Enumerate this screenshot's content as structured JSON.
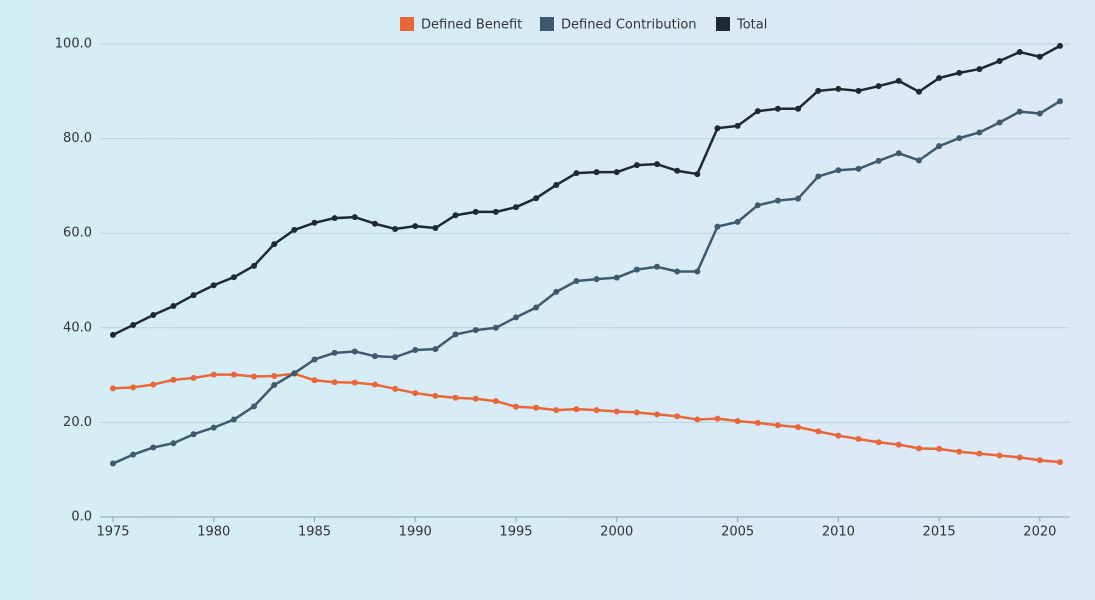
{
  "chart_data": {
    "type": "line",
    "categories": [
      "1975",
      null,
      null,
      null,
      null,
      "1980",
      null,
      null,
      null,
      null,
      "1985",
      null,
      null,
      null,
      null,
      "1990",
      null,
      null,
      null,
      null,
      "1995",
      null,
      null,
      null,
      null,
      "2000",
      null,
      null,
      null,
      null,
      null,
      "2005",
      null,
      null,
      null,
      null,
      "2010",
      null,
      null,
      null,
      null,
      "2015",
      null,
      null,
      null,
      null,
      "2020",
      null
    ],
    "series": [
      {
        "name": "Defined Benefit",
        "color": "#e8673a",
        "values": [
          27.2,
          27.4,
          28.0,
          29.0,
          29.4,
          30.1,
          30.1,
          29.7,
          29.8,
          30.3,
          28.9,
          28.5,
          28.4,
          28.0,
          27.1,
          26.2,
          25.6,
          25.2,
          25.0,
          24.5,
          23.3,
          23.1,
          22.6,
          22.8,
          22.6,
          22.3,
          22.1,
          21.7,
          21.3,
          20.6,
          20.8,
          20.3,
          19.9,
          19.4,
          19.0,
          18.1,
          17.2,
          16.5,
          15.8,
          15.3,
          14.5,
          14.4,
          13.8,
          13.4,
          13.0,
          12.6,
          12.0,
          11.6
        ]
      },
      {
        "name": "Defined Contribution",
        "color": "#3d5a6e",
        "values": [
          11.3,
          13.2,
          14.7,
          15.6,
          17.5,
          18.9,
          20.6,
          23.4,
          27.9,
          30.4,
          33.3,
          34.7,
          35.0,
          34.0,
          33.8,
          35.3,
          35.5,
          38.6,
          39.5,
          40.0,
          42.2,
          44.3,
          47.6,
          49.9,
          50.3,
          50.6,
          52.3,
          52.9,
          51.9,
          51.9,
          61.4,
          62.4,
          65.9,
          66.9,
          67.3,
          72.0,
          73.3,
          73.6,
          75.3,
          76.9,
          75.4,
          78.4,
          80.1,
          81.3,
          83.4,
          85.7,
          85.3,
          87.9
        ]
      },
      {
        "name": "Total",
        "color": "#1f2a30",
        "values": [
          38.5,
          40.6,
          42.7,
          44.6,
          46.9,
          49.0,
          50.7,
          53.1,
          57.7,
          60.7,
          62.2,
          63.2,
          63.4,
          62.0,
          60.9,
          61.5,
          61.1,
          63.8,
          64.5,
          64.5,
          65.5,
          67.4,
          70.2,
          72.7,
          72.9,
          72.9,
          74.4,
          74.6,
          73.2,
          72.5,
          82.2,
          82.7,
          85.8,
          86.3,
          86.3,
          90.1,
          90.5,
          90.1,
          91.1,
          92.2,
          89.9,
          92.8,
          93.9,
          94.7,
          96.4,
          98.3,
          97.3,
          99.6
        ]
      }
    ],
    "ylim": [
      0,
      100
    ],
    "yticks": [
      {
        "value": 0,
        "label": "0.0"
      },
      {
        "value": 20,
        "label": "20.0"
      },
      {
        "value": 40,
        "label": "40.0"
      },
      {
        "value": 60,
        "label": "60.0"
      },
      {
        "value": 80,
        "label": "80.0"
      },
      {
        "value": 100,
        "label": "100.0"
      }
    ],
    "grid": true,
    "legend": "top"
  }
}
